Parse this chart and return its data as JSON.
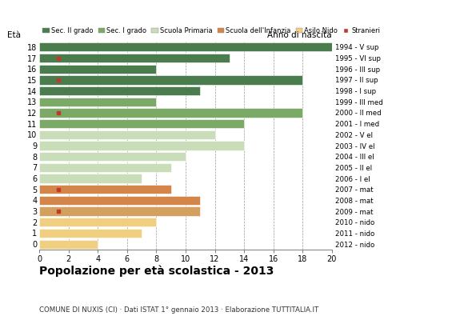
{
  "ages": [
    18,
    17,
    16,
    15,
    14,
    13,
    12,
    11,
    10,
    9,
    8,
    7,
    6,
    5,
    4,
    3,
    2,
    1,
    0
  ],
  "years": [
    "1994 - V sup",
    "1995 - VI sup",
    "1996 - III sup",
    "1997 - II sup",
    "1998 - I sup",
    "1999 - III med",
    "2000 - II med",
    "2001 - I med",
    "2002 - V el",
    "2003 - IV el",
    "2004 - III el",
    "2005 - II el",
    "2006 - I el",
    "2007 - mat",
    "2008 - mat",
    "2009 - mat",
    "2010 - nido",
    "2011 - nido",
    "2012 - nido"
  ],
  "values": [
    20,
    13,
    8,
    18,
    11,
    8,
    18,
    14,
    12,
    14,
    10,
    9,
    7,
    9,
    11,
    11,
    8,
    7,
    4
  ],
  "stranieri": [
    0,
    1,
    0,
    1,
    0,
    0,
    1,
    0,
    0,
    0,
    0,
    0,
    0,
    1,
    0,
    1,
    0,
    0,
    0
  ],
  "stranieri_x": [
    0,
    1.3,
    0,
    1.3,
    0,
    0,
    1.3,
    0,
    0,
    0,
    0,
    0,
    0,
    1.3,
    0,
    1.3,
    0,
    0,
    0
  ],
  "bar_colors_by_age": {
    "18": "#4a7c4e",
    "17": "#4a7c4e",
    "16": "#4a7c4e",
    "15": "#4a7c4e",
    "14": "#4a7c4e",
    "13": "#7aaa65",
    "12": "#7aaa65",
    "11": "#7aaa65",
    "10": "#c8ddb8",
    "9": "#c8ddb8",
    "8": "#c8ddb8",
    "7": "#c8ddb8",
    "6": "#c8ddb8",
    "5": "#d4854a",
    "4": "#d4854a",
    "3": "#d4a060",
    "2": "#f0d080",
    "1": "#f0d080",
    "0": "#f0d080"
  },
  "title": "Popolazione per età scolastica - 2013",
  "subtitle": "COMUNE DI NUXIS (CI) · Dati ISTAT 1° gennaio 2013 · Elaborazione TUTTITALIA.IT",
  "xlabel_left": "Età",
  "xlabel_right": "Anno di nascita",
  "xlim": [
    0,
    20
  ],
  "xticks": [
    0,
    2,
    4,
    6,
    8,
    10,
    12,
    14,
    16,
    18,
    20
  ],
  "legend_labels": [
    "Sec. II grado",
    "Sec. I grado",
    "Scuola Primaria",
    "Scuola dell'Infanzia",
    "Asilo Nido",
    "Stranieri"
  ],
  "legend_colors": [
    "#4a7c4e",
    "#7aaa65",
    "#c8ddb8",
    "#d4854a",
    "#f0d080",
    "#c0392b"
  ],
  "bg_color": "#ffffff",
  "grid_color": "#999999",
  "stranieri_color": "#c0392b"
}
